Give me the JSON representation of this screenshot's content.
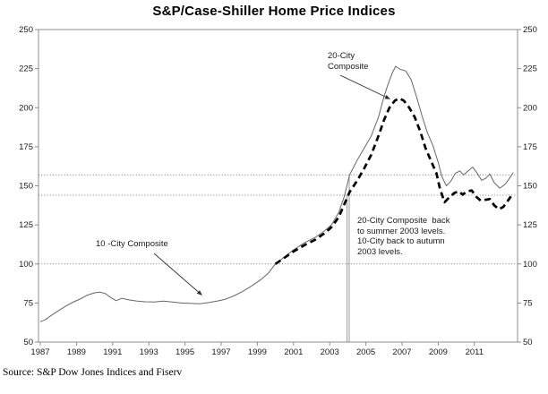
{
  "title": "S&P/Case-Shiller Home Price Indices",
  "source_note": "Source: S&P Dow Jones Indices and Fiserv",
  "annotations": {
    "label_20city": {
      "text": "20-City\nComposite"
    },
    "label_10city": {
      "text": "10 -City Composite"
    },
    "levels_note": {
      "text": "20-City Composite  back\nto summer 2003 levels.\n10-City back to autumn\n2003 levels."
    }
  },
  "colors": {
    "background": "#ffffff",
    "frame": "#8c8c8c",
    "text": "#1a1a1a",
    "series_10city": "#666666",
    "series_20city": "#000000",
    "reference_line": "#555555",
    "vertical_marker": "#9a9a9a"
  },
  "chart_data": {
    "type": "line",
    "title": "S&P/Case-Shiller Home Price Indices",
    "xlabel": "",
    "ylabel": "",
    "ylim": [
      50,
      250
    ],
    "xlim": [
      1986.9,
      2013.4
    ],
    "y_ticks": [
      250,
      225,
      200,
      175,
      150,
      125,
      100,
      75,
      50
    ],
    "y_axis_sides": [
      "left",
      "right"
    ],
    "x_ticks": [
      1987,
      1989,
      1991,
      1993,
      1995,
      1997,
      1999,
      2001,
      2003,
      2005,
      2007,
      2009,
      2011
    ],
    "grid": "off",
    "legend_position": "on-chart arrow annotations",
    "reference_lines": [
      {
        "value": 157,
        "style": "dotted",
        "meaning": "current 10-City level (autumn 2003 level)"
      },
      {
        "value": 144,
        "style": "dotted",
        "meaning": "current 20-City level (summer 2003 level)"
      },
      {
        "value": 100,
        "style": "dotted",
        "meaning": "index base level 100"
      }
    ],
    "vertical_markers": [
      {
        "year": 2003.96,
        "top_value": 144,
        "meaning": "summer 2003 marker"
      },
      {
        "year": 2004.08,
        "top_value": 157,
        "meaning": "autumn 2003 marker"
      }
    ],
    "series": [
      {
        "name": "10-City Composite",
        "line": "thin-solid",
        "points": [
          [
            1987.0,
            63
          ],
          [
            1987.3,
            64.5
          ],
          [
            1987.6,
            67
          ],
          [
            1988.0,
            70
          ],
          [
            1988.4,
            73
          ],
          [
            1988.8,
            75.5
          ],
          [
            1989.2,
            77.5
          ],
          [
            1989.6,
            80
          ],
          [
            1990.0,
            81.5
          ],
          [
            1990.3,
            82
          ],
          [
            1990.6,
            81
          ],
          [
            1990.9,
            78.5
          ],
          [
            1991.2,
            76.5
          ],
          [
            1991.5,
            78
          ],
          [
            1991.9,
            77
          ],
          [
            1992.3,
            76.3
          ],
          [
            1992.8,
            75.8
          ],
          [
            1993.3,
            75.6
          ],
          [
            1993.8,
            76.2
          ],
          [
            1994.3,
            75.6
          ],
          [
            1994.8,
            75
          ],
          [
            1995.3,
            74.8
          ],
          [
            1995.8,
            74.5
          ],
          [
            1996.3,
            75.3
          ],
          [
            1996.8,
            76.3
          ],
          [
            1997.2,
            77.3
          ],
          [
            1997.7,
            79.5
          ],
          [
            1998.2,
            82.5
          ],
          [
            1998.7,
            86
          ],
          [
            1999.2,
            90
          ],
          [
            1999.6,
            94
          ],
          [
            2000.0,
            100
          ],
          [
            2000.5,
            104.5
          ],
          [
            2001.0,
            109
          ],
          [
            2001.6,
            113.5
          ],
          [
            2002.2,
            117
          ],
          [
            2002.7,
            121
          ],
          [
            2003.1,
            125
          ],
          [
            2003.5,
            133
          ],
          [
            2003.8,
            143
          ],
          [
            2004.1,
            157
          ],
          [
            2004.5,
            166
          ],
          [
            2004.9,
            174
          ],
          [
            2005.3,
            182
          ],
          [
            2005.7,
            194
          ],
          [
            2006.0,
            207
          ],
          [
            2006.2,
            214
          ],
          [
            2006.45,
            222
          ],
          [
            2006.65,
            226.5
          ],
          [
            2006.9,
            224.5
          ],
          [
            2007.2,
            223.5
          ],
          [
            2007.5,
            218
          ],
          [
            2007.8,
            207
          ],
          [
            2008.1,
            195
          ],
          [
            2008.4,
            184
          ],
          [
            2008.7,
            176
          ],
          [
            2009.0,
            165
          ],
          [
            2009.2,
            156
          ],
          [
            2009.45,
            150
          ],
          [
            2009.7,
            153
          ],
          [
            2009.95,
            158
          ],
          [
            2010.2,
            159.5
          ],
          [
            2010.4,
            157
          ],
          [
            2010.7,
            160
          ],
          [
            2010.9,
            162
          ],
          [
            2011.1,
            159
          ],
          [
            2011.4,
            153.5
          ],
          [
            2011.65,
            155
          ],
          [
            2011.85,
            157.5
          ],
          [
            2012.1,
            152
          ],
          [
            2012.4,
            148.5
          ],
          [
            2012.7,
            151
          ],
          [
            2012.95,
            155
          ],
          [
            2013.15,
            158.5
          ]
        ]
      },
      {
        "name": "20-City Composite",
        "line": "thick-dashed",
        "points": [
          [
            2000.0,
            100
          ],
          [
            2000.5,
            104
          ],
          [
            2001.0,
            108
          ],
          [
            2001.6,
            112
          ],
          [
            2002.2,
            115.5
          ],
          [
            2002.7,
            119.5
          ],
          [
            2003.1,
            123.5
          ],
          [
            2003.5,
            130
          ],
          [
            2003.8,
            138
          ],
          [
            2004.1,
            146
          ],
          [
            2004.5,
            153
          ],
          [
            2004.9,
            161
          ],
          [
            2005.3,
            170
          ],
          [
            2005.7,
            182
          ],
          [
            2006.0,
            192
          ],
          [
            2006.3,
            200
          ],
          [
            2006.6,
            204.5
          ],
          [
            2006.85,
            206
          ],
          [
            2007.1,
            204.5
          ],
          [
            2007.4,
            200
          ],
          [
            2007.7,
            194
          ],
          [
            2008.0,
            185
          ],
          [
            2008.3,
            174
          ],
          [
            2008.6,
            166
          ],
          [
            2008.9,
            158
          ],
          [
            2009.1,
            148
          ],
          [
            2009.35,
            139.5
          ],
          [
            2009.6,
            142.5
          ],
          [
            2009.9,
            145.5
          ],
          [
            2010.15,
            146.5
          ],
          [
            2010.35,
            144.3
          ],
          [
            2010.6,
            146.5
          ],
          [
            2010.85,
            147
          ],
          [
            2011.1,
            143
          ],
          [
            2011.35,
            140.5
          ],
          [
            2011.6,
            141
          ],
          [
            2011.85,
            141.5
          ],
          [
            2012.1,
            137.5
          ],
          [
            2012.35,
            135
          ],
          [
            2012.6,
            136.5
          ],
          [
            2012.85,
            140.5
          ],
          [
            2013.1,
            144.5
          ]
        ]
      }
    ]
  }
}
